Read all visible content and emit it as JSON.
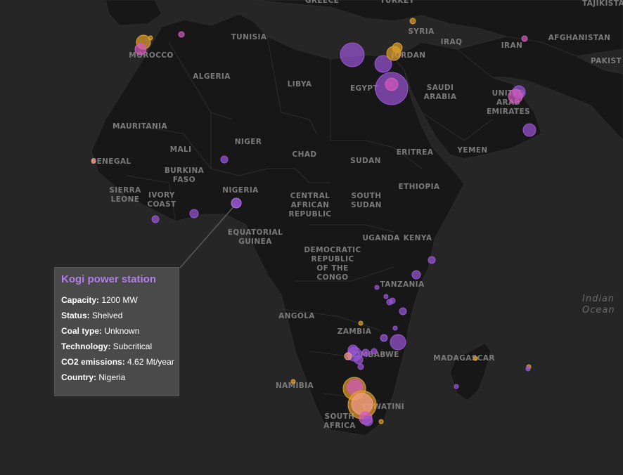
{
  "map": {
    "colors": {
      "water": "#262626",
      "land": "#171717",
      "border": "#333333",
      "label": "#7a7a7a",
      "tooltip_bg": "#4a4a4a",
      "tooltip_title": "#b07ee6"
    },
    "country_labels": [
      {
        "id": "greece",
        "lines": [
          "GREECE"
        ]
      },
      {
        "id": "turkey",
        "lines": [
          "TURKEY"
        ]
      },
      {
        "id": "tajikistan",
        "lines": [
          "TAJIKISTA"
        ]
      },
      {
        "id": "tunisia",
        "lines": [
          "TUNISIA"
        ]
      },
      {
        "id": "syria",
        "lines": [
          "SYRIA"
        ]
      },
      {
        "id": "afghanistan",
        "lines": [
          "AFGHANISTAN"
        ]
      },
      {
        "id": "iraq",
        "lines": [
          "IRAQ"
        ]
      },
      {
        "id": "iran",
        "lines": [
          "IRAN"
        ]
      },
      {
        "id": "morocco",
        "lines": [
          "MOROCCO"
        ]
      },
      {
        "id": "jordan",
        "lines": [
          "JORDAN"
        ]
      },
      {
        "id": "pakistan",
        "lines": [
          "PAKIST"
        ]
      },
      {
        "id": "algeria",
        "lines": [
          "ALGERIA"
        ]
      },
      {
        "id": "libya",
        "lines": [
          "LIBYA"
        ]
      },
      {
        "id": "egypt",
        "lines": [
          "EGYPT"
        ]
      },
      {
        "id": "saudi-arabia",
        "lines": [
          "SAUDI",
          "ARABIA"
        ]
      },
      {
        "id": "uae",
        "lines": [
          "UNITED",
          "ARAB",
          "EMIRATES"
        ]
      },
      {
        "id": "mauritania",
        "lines": [
          "MAURITANIA"
        ]
      },
      {
        "id": "niger",
        "lines": [
          "NIGER"
        ]
      },
      {
        "id": "mali",
        "lines": [
          "MALI"
        ]
      },
      {
        "id": "chad",
        "lines": [
          "CHAD"
        ]
      },
      {
        "id": "eritrea",
        "lines": [
          "ERITREA"
        ]
      },
      {
        "id": "yemen",
        "lines": [
          "YEMEN"
        ]
      },
      {
        "id": "senegal",
        "lines": [
          "SENEGAL"
        ]
      },
      {
        "id": "sudan",
        "lines": [
          "SUDAN"
        ]
      },
      {
        "id": "burkina-faso",
        "lines": [
          "BURKINA",
          "FASO"
        ]
      },
      {
        "id": "ethiopia",
        "lines": [
          "ETHIOPIA"
        ]
      },
      {
        "id": "nigeria",
        "lines": [
          "NIGERIA"
        ]
      },
      {
        "id": "sierra-leone",
        "lines": [
          "SIERRA",
          "LEONE"
        ]
      },
      {
        "id": "ivory-coast",
        "lines": [
          "IVORY",
          "COAST"
        ]
      },
      {
        "id": "central-african-republic",
        "lines": [
          "CENTRAL",
          "AFRICAN",
          "REPUBLIC"
        ]
      },
      {
        "id": "south-sudan",
        "lines": [
          "SOUTH",
          "SUDAN"
        ]
      },
      {
        "id": "equatorial-guinea",
        "lines": [
          "EQUATORIAL",
          "GUINEA"
        ]
      },
      {
        "id": "uganda",
        "lines": [
          "UGANDA"
        ]
      },
      {
        "id": "kenya",
        "lines": [
          "KENYA"
        ]
      },
      {
        "id": "drc",
        "lines": [
          "DEMOCRATIC",
          "REPUBLIC",
          "OF THE",
          "CONGO"
        ]
      },
      {
        "id": "tanzania",
        "lines": [
          "TANZANIA"
        ]
      },
      {
        "id": "angola",
        "lines": [
          "ANGOLA"
        ]
      },
      {
        "id": "zambia",
        "lines": [
          "ZAMBIA"
        ]
      },
      {
        "id": "zimbabwe",
        "lines": [
          "ZIMBABWE"
        ]
      },
      {
        "id": "madagascar",
        "lines": [
          "MADAGASCAR"
        ]
      },
      {
        "id": "namibia",
        "lines": [
          "NAMIBIA"
        ]
      },
      {
        "id": "eswatini",
        "lines": [
          "ESWATINI"
        ]
      },
      {
        "id": "south-africa",
        "lines": [
          "SOUTH",
          "AFRICA"
        ]
      }
    ],
    "ocean_labels": [
      {
        "id": "indian-ocean",
        "lines": [
          "Indian",
          "Ocean"
        ]
      }
    ],
    "plant_colors": {
      "purple": "#9a55d6",
      "magenta": "#d65ac0",
      "orange": "#e0a02c",
      "salmon": "#f39a8a"
    },
    "plants": [
      {
        "color": "orange",
        "size": 3
      },
      {
        "color": "magenta",
        "size": 4
      },
      {
        "color": "orange",
        "size": 10
      },
      {
        "color": "magenta",
        "size": 8
      },
      {
        "color": "orange",
        "size": 4
      },
      {
        "color": "purple",
        "size": 17
      },
      {
        "color": "purple",
        "size": 12
      },
      {
        "color": "orange",
        "size": 10
      },
      {
        "color": "orange",
        "size": 7
      },
      {
        "color": "purple",
        "size": 23
      },
      {
        "color": "magenta",
        "size": 9
      },
      {
        "color": "magenta",
        "size": 4
      },
      {
        "color": "purple",
        "size": 9
      },
      {
        "color": "magenta",
        "size": 10
      },
      {
        "color": "purple",
        "size": 9
      },
      {
        "color": "salmon",
        "size": 3
      },
      {
        "color": "purple",
        "size": 5
      },
      {
        "color": "purple",
        "size": 6
      },
      {
        "color": "purple",
        "size": 5
      },
      {
        "color": "purple",
        "size": 5
      },
      {
        "color": "purple",
        "size": 6
      },
      {
        "color": "purple",
        "size": 3
      },
      {
        "color": "purple",
        "size": 3
      },
      {
        "color": "purple",
        "size": 4
      },
      {
        "color": "purple",
        "size": 5
      },
      {
        "color": "purple",
        "size": 4
      },
      {
        "color": "purple",
        "size": 3
      },
      {
        "color": "orange",
        "size": 3
      },
      {
        "color": "purple",
        "size": 3
      },
      {
        "color": "purple",
        "size": 7
      },
      {
        "color": "purple",
        "size": 11
      },
      {
        "color": "purple",
        "size": 5
      },
      {
        "color": "purple",
        "size": 10
      },
      {
        "color": "purple",
        "size": 6
      },
      {
        "color": "salmon",
        "size": 5
      },
      {
        "color": "purple",
        "size": 4
      },
      {
        "color": "purple",
        "size": 5
      },
      {
        "color": "purple",
        "size": 4
      },
      {
        "color": "orange",
        "size": 3
      },
      {
        "color": "orange",
        "size": 16
      },
      {
        "color": "magenta",
        "size": 11
      },
      {
        "color": "orange",
        "size": 20
      },
      {
        "color": "salmon",
        "size": 15
      },
      {
        "color": "magenta",
        "size": 9
      },
      {
        "color": "purple",
        "size": 7
      },
      {
        "color": "orange",
        "size": 3
      },
      {
        "color": "orange",
        "size": 3
      },
      {
        "color": "orange",
        "size": 3
      },
      {
        "color": "purple",
        "size": 3
      }
    ],
    "selected_plant": {
      "name": "Kogi power station",
      "color": "purple",
      "size": 7
    }
  },
  "tooltip": {
    "title": "Kogi power station",
    "rows": [
      {
        "label": "Capacity:",
        "value": "1200 MW"
      },
      {
        "label": "Status:",
        "value": "Shelved"
      },
      {
        "label": "Coal type:",
        "value": "Unknown"
      },
      {
        "label": "Technology:",
        "value": "Subcritical"
      },
      {
        "label": "CO2 emissions:",
        "value": "4.62 Mt/year"
      },
      {
        "label": "Country:",
        "value": "Nigeria"
      }
    ]
  }
}
